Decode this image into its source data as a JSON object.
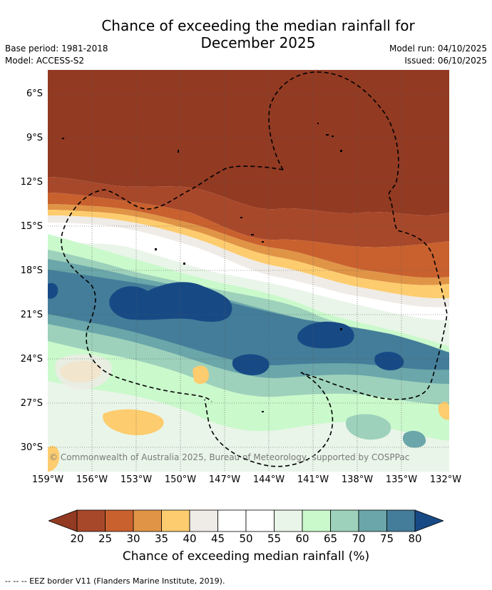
{
  "title_line1": "Chance of exceeding the median rainfall for",
  "title_line2": "December 2025",
  "base_period": "Base period: 1981-2018",
  "model": "Model: ACCESS-S2",
  "model_run": "Model run: 04/10/2025",
  "issued": "Issued: 06/10/2025",
  "lat_labels": [
    "6°S",
    "9°S",
    "12°S",
    "15°S",
    "18°S",
    "21°S",
    "24°S",
    "27°S",
    "30°S"
  ],
  "lon_labels": [
    "159°W",
    "156°W",
    "153°W",
    "150°W",
    "147°W",
    "144°W",
    "141°W",
    "138°W",
    "135°W",
    "132°W"
  ],
  "copyright": "© Commonwealth of Australia 2025, Bureau of Meteorology, supported by COSPPac",
  "colorbar": {
    "ticks": [
      "20",
      "25",
      "30",
      "35",
      "40",
      "45",
      "50",
      "55",
      "60",
      "65",
      "70",
      "75",
      "80"
    ],
    "colors": [
      "#a8482a",
      "#c8612e",
      "#e09446",
      "#fdcc6e",
      "#efebe6",
      "#ffffff",
      "#ffffff",
      "#e9f5e8",
      "#caf9cc",
      "#9dd1bb",
      "#6aa6aa",
      "#447d99"
    ],
    "under_color": "#923a22",
    "over_color": "#174a85",
    "label": "Chance of exceeding median rainfall (%)"
  },
  "legend_text": "--  --  -- EEZ border V11 (Flanders Marine Institute, 2019)."
}
